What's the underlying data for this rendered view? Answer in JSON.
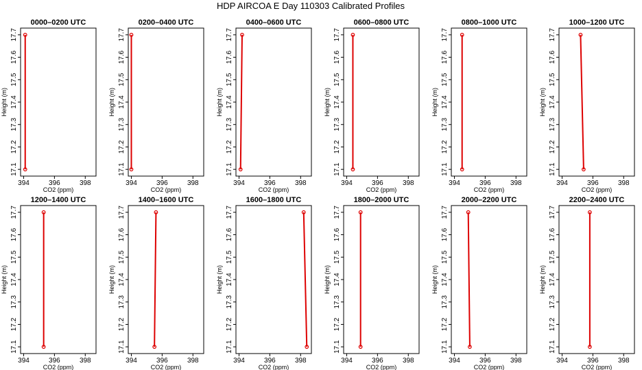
{
  "figure": {
    "title": "HDP AIRCOA E  Day 110303  Calibrated Profiles",
    "colors": {
      "series": "#dd0000",
      "axis": "#000000",
      "background": "#ffffff"
    }
  },
  "chart_data": [
    {
      "type": "line",
      "title": "0000–0200 UTC",
      "xlabel": "CO2 (ppm)",
      "ylabel": "Height (m)",
      "xlim": [
        393.8,
        398.7
      ],
      "ylim": [
        17.07,
        17.73
      ],
      "xticks": [
        394,
        396,
        398
      ],
      "yticks": [
        17.1,
        17.2,
        17.3,
        17.4,
        17.5,
        17.6,
        17.7
      ],
      "x": [
        394.1,
        394.1
      ],
      "y": [
        17.1,
        17.7
      ]
    },
    {
      "type": "line",
      "title": "0200–0400 UTC",
      "xlabel": "CO2 (ppm)",
      "ylabel": "Height (m)",
      "xlim": [
        393.8,
        398.7
      ],
      "ylim": [
        17.07,
        17.73
      ],
      "xticks": [
        394,
        396,
        398
      ],
      "yticks": [
        17.1,
        17.2,
        17.3,
        17.4,
        17.5,
        17.6,
        17.7
      ],
      "x": [
        394.0,
        394.0
      ],
      "y": [
        17.1,
        17.7
      ]
    },
    {
      "type": "line",
      "title": "0400–0600 UTC",
      "xlabel": "CO2 (ppm)",
      "ylabel": "Height (m)",
      "xlim": [
        393.8,
        398.7
      ],
      "ylim": [
        17.07,
        17.73
      ],
      "xticks": [
        394,
        396,
        398
      ],
      "yticks": [
        17.1,
        17.2,
        17.3,
        17.4,
        17.5,
        17.6,
        17.7
      ],
      "x": [
        394.1,
        394.2
      ],
      "y": [
        17.1,
        17.7
      ]
    },
    {
      "type": "line",
      "title": "0600–0800 UTC",
      "xlabel": "CO2 (ppm)",
      "ylabel": "Height (m)",
      "xlim": [
        393.8,
        398.7
      ],
      "ylim": [
        17.07,
        17.73
      ],
      "xticks": [
        394,
        396,
        398
      ],
      "yticks": [
        17.1,
        17.2,
        17.3,
        17.4,
        17.5,
        17.6,
        17.7
      ],
      "x": [
        394.4,
        394.4
      ],
      "y": [
        17.1,
        17.7
      ]
    },
    {
      "type": "line",
      "title": "0800–1000 UTC",
      "xlabel": "CO2 (ppm)",
      "ylabel": "Height (m)",
      "xlim": [
        393.8,
        398.7
      ],
      "ylim": [
        17.07,
        17.73
      ],
      "xticks": [
        394,
        396,
        398
      ],
      "yticks": [
        17.1,
        17.2,
        17.3,
        17.4,
        17.5,
        17.6,
        17.7
      ],
      "x": [
        394.5,
        394.5
      ],
      "y": [
        17.1,
        17.7
      ]
    },
    {
      "type": "line",
      "title": "1000–1200 UTC",
      "xlabel": "CO2 (ppm)",
      "ylabel": "Height (m)",
      "xlim": [
        393.8,
        398.7
      ],
      "ylim": [
        17.07,
        17.73
      ],
      "xticks": [
        394,
        396,
        398
      ],
      "yticks": [
        17.1,
        17.2,
        17.3,
        17.4,
        17.5,
        17.6,
        17.7
      ],
      "x": [
        395.4,
        395.2
      ],
      "y": [
        17.1,
        17.7
      ]
    },
    {
      "type": "line",
      "title": "1200–1400 UTC",
      "xlabel": "CO2 (ppm)",
      "ylabel": "Height (m)",
      "xlim": [
        393.8,
        398.7
      ],
      "ylim": [
        17.07,
        17.73
      ],
      "xticks": [
        394,
        396,
        398
      ],
      "yticks": [
        17.1,
        17.2,
        17.3,
        17.4,
        17.5,
        17.6,
        17.7
      ],
      "x": [
        395.3,
        395.3
      ],
      "y": [
        17.1,
        17.7
      ]
    },
    {
      "type": "line",
      "title": "1400–1600 UTC",
      "xlabel": "CO2 (ppm)",
      "ylabel": "Height (m)",
      "xlim": [
        393.8,
        398.7
      ],
      "ylim": [
        17.07,
        17.73
      ],
      "xticks": [
        394,
        396,
        398
      ],
      "yticks": [
        17.1,
        17.2,
        17.3,
        17.4,
        17.5,
        17.6,
        17.7
      ],
      "x": [
        395.5,
        395.6
      ],
      "y": [
        17.1,
        17.7
      ]
    },
    {
      "type": "line",
      "title": "1600–1800 UTC",
      "xlabel": "CO2 (ppm)",
      "ylabel": "Height (m)",
      "xlim": [
        393.8,
        398.7
      ],
      "ylim": [
        17.07,
        17.73
      ],
      "xticks": [
        394,
        396,
        398
      ],
      "yticks": [
        17.1,
        17.2,
        17.3,
        17.4,
        17.5,
        17.6,
        17.7
      ],
      "x": [
        398.4,
        398.2
      ],
      "y": [
        17.1,
        17.7
      ]
    },
    {
      "type": "line",
      "title": "1800–2000 UTC",
      "xlabel": "CO2 (ppm)",
      "ylabel": "Height (m)",
      "xlim": [
        393.8,
        398.7
      ],
      "ylim": [
        17.07,
        17.73
      ],
      "xticks": [
        394,
        396,
        398
      ],
      "yticks": [
        17.1,
        17.2,
        17.3,
        17.4,
        17.5,
        17.6,
        17.7
      ],
      "x": [
        394.9,
        394.9
      ],
      "y": [
        17.1,
        17.7
      ]
    },
    {
      "type": "line",
      "title": "2000–2200 UTC",
      "xlabel": "CO2 (ppm)",
      "ylabel": "Height (m)",
      "xlim": [
        393.8,
        398.7
      ],
      "ylim": [
        17.07,
        17.73
      ],
      "xticks": [
        394,
        396,
        398
      ],
      "yticks": [
        17.1,
        17.2,
        17.3,
        17.4,
        17.5,
        17.6,
        17.7
      ],
      "x": [
        395.0,
        394.9
      ],
      "y": [
        17.1,
        17.7
      ]
    },
    {
      "type": "line",
      "title": "2200–2400 UTC",
      "xlabel": "CO2 (ppm)",
      "ylabel": "Height (m)",
      "xlim": [
        393.8,
        398.7
      ],
      "ylim": [
        17.07,
        17.73
      ],
      "xticks": [
        394,
        396,
        398
      ],
      "yticks": [
        17.1,
        17.2,
        17.3,
        17.4,
        17.5,
        17.6,
        17.7
      ],
      "x": [
        395.8,
        395.8
      ],
      "y": [
        17.1,
        17.7
      ]
    }
  ]
}
